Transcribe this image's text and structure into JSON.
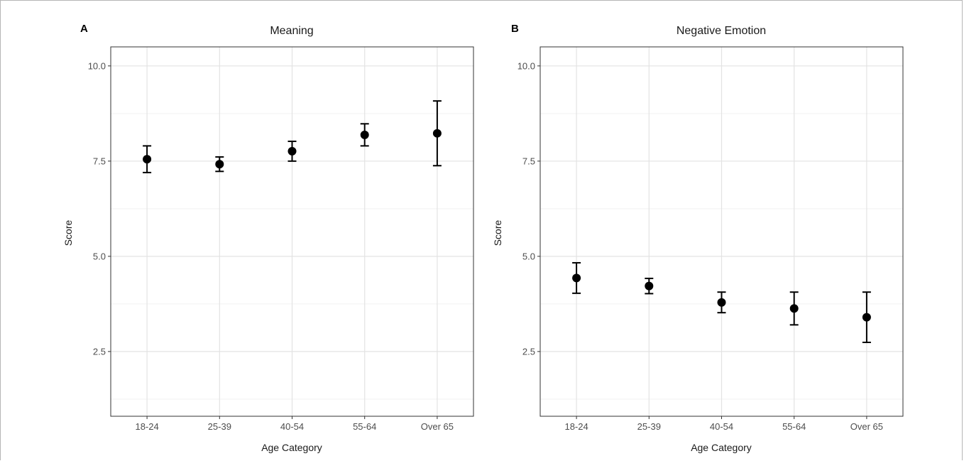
{
  "chart_data": [
    {
      "type": "scatter",
      "panel_label": "A",
      "title": "Meaning",
      "xlabel": "Age Category",
      "ylabel": "Score",
      "categories": [
        "18-24",
        "25-39",
        "40-54",
        "55-64",
        "Over 65"
      ],
      "values": [
        7.55,
        7.42,
        7.76,
        8.19,
        8.23
      ],
      "error_low": [
        7.2,
        7.23,
        7.5,
        7.9,
        7.38
      ],
      "error_high": [
        7.9,
        7.61,
        8.02,
        8.48,
        9.08
      ],
      "ylim": [
        0.8,
        10.5
      ],
      "yticks": [
        "10.0",
        "7.5",
        "5.0",
        "2.5"
      ],
      "grid": true,
      "legend": "none"
    },
    {
      "type": "scatter",
      "panel_label": "B",
      "title": "Negative Emotion",
      "xlabel": "Age Category",
      "ylabel": "Score",
      "categories": [
        "18-24",
        "25-39",
        "40-54",
        "55-64",
        "Over 65"
      ],
      "values": [
        4.43,
        4.22,
        3.79,
        3.63,
        3.4
      ],
      "error_low": [
        4.03,
        4.02,
        3.52,
        3.2,
        2.74
      ],
      "error_high": [
        4.83,
        4.42,
        4.06,
        4.06,
        4.06
      ],
      "ylim": [
        0.8,
        10.5
      ],
      "yticks": [
        "10.0",
        "7.5",
        "5.0",
        "2.5"
      ],
      "grid": true,
      "legend": "none"
    }
  ]
}
